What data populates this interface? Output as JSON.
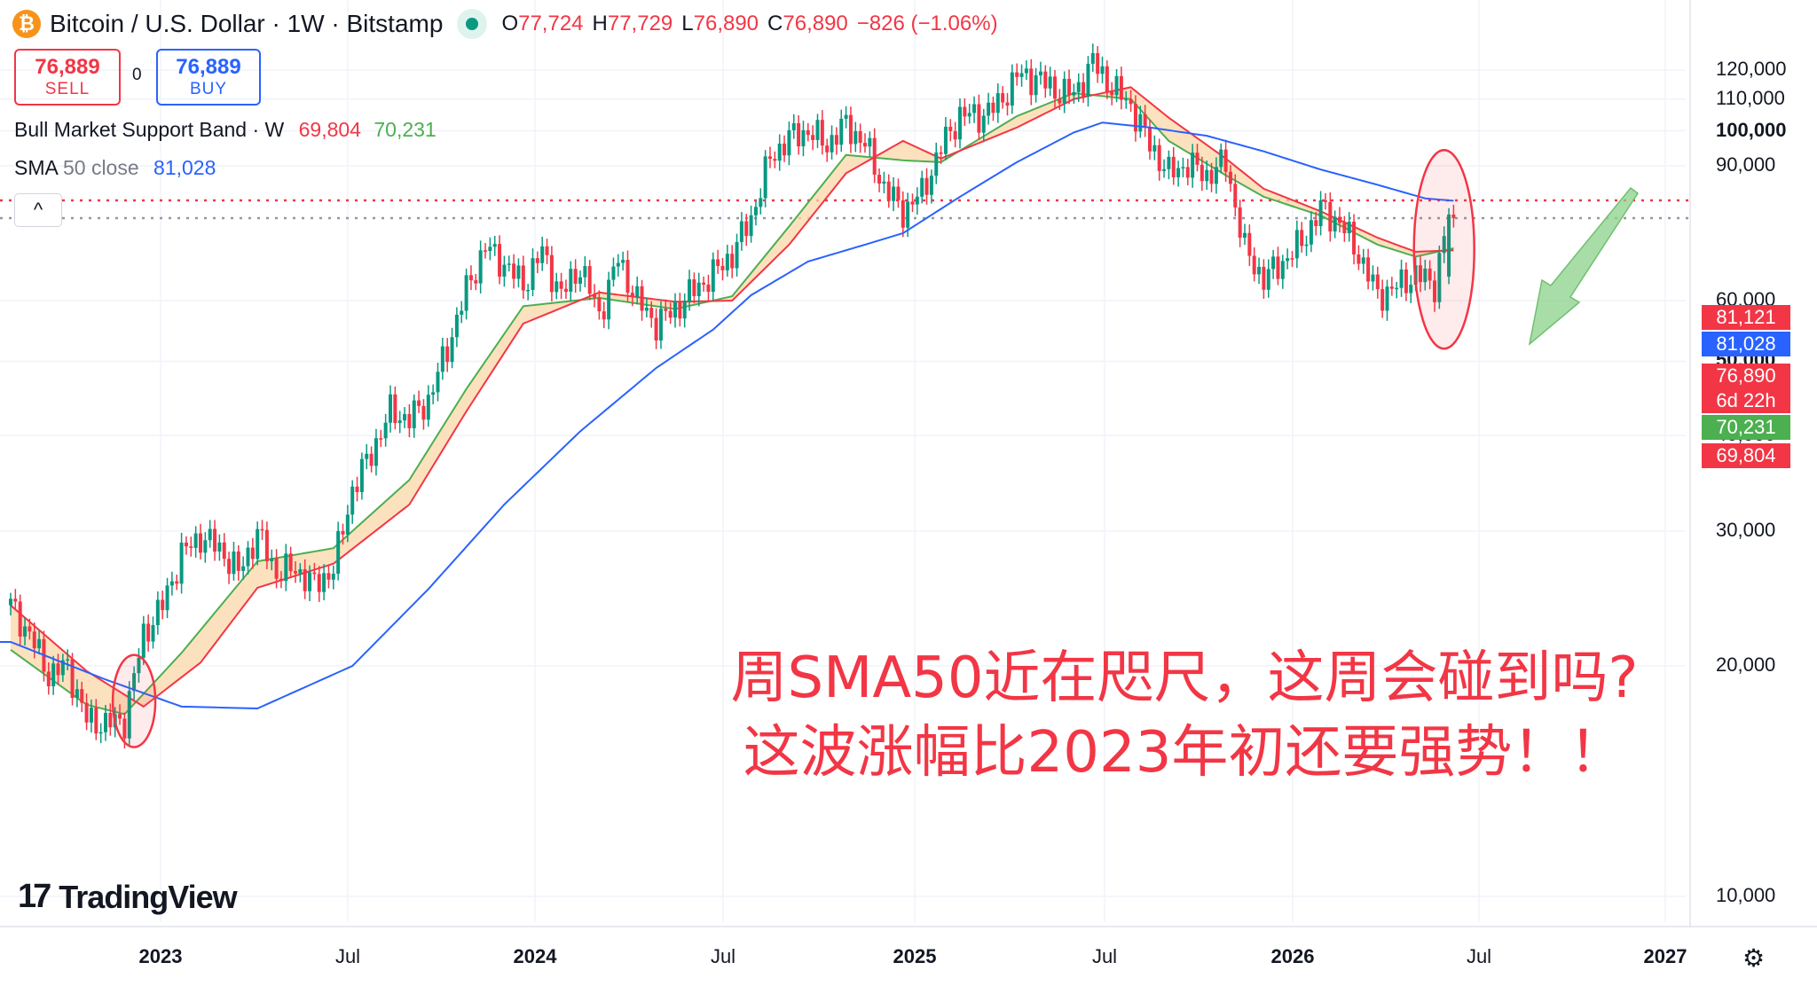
{
  "header": {
    "coin_glyph": "₿",
    "symbol": "Bitcoin / U.S. Dollar · 1W · Bitstamp",
    "open_label": "O",
    "open": "77,724",
    "high_label": "H",
    "high": "77,729",
    "low_label": "L",
    "low": "76,890",
    "close_label": "C",
    "close": "76,890",
    "change": "−826 (−1.06%)"
  },
  "trade": {
    "sell_price": "76,889",
    "sell_label": "SELL",
    "spread": "0",
    "buy_price": "76,889",
    "buy_label": "BUY"
  },
  "indicators": {
    "band_name": "Bull Market Support Band · W",
    "band_low": "69,804",
    "band_high": "70,231",
    "sma_name": "SMA",
    "sma_params": "50 close",
    "sma_value": "81,028",
    "collapse_glyph": "^"
  },
  "annotation": {
    "line1": "周SMA50近在咫尺，这周会碰到吗?",
    "line2": "这波涨幅比2023年初还要强势！！"
  },
  "logo": {
    "mark": "17",
    "text": "TradingView"
  },
  "settings_glyph": "⚙",
  "price_labels": [
    {
      "text": "81,121",
      "sub": "",
      "color": "#f23645",
      "value": 81121
    },
    {
      "text": "81,028",
      "sub": "",
      "color": "#2962ff",
      "value": 81028
    },
    {
      "text": "76,890",
      "sub": "6d 22h",
      "color": "#f23645",
      "value": 76890
    },
    {
      "text": "70,231",
      "sub": "",
      "color": "#4caf50",
      "value": 70231
    },
    {
      "text": "69,804",
      "sub": "",
      "color": "#f23645",
      "value": 69804
    }
  ],
  "colors": {
    "up": "#089981",
    "down": "#f23645",
    "sma": "#2962ff",
    "band_fill": "#fbd7a8",
    "band_green": "#4caf50",
    "band_red": "#f23645",
    "arrow": "#8bd18b",
    "grid": "#f0f3fa"
  },
  "chart_data": {
    "type": "candlestick",
    "title": "Bitcoin / U.S. Dollar · 1W · Bitstamp",
    "y_scale": "log",
    "y_ticks": [
      {
        "value": 120000,
        "label": "120,000"
      },
      {
        "value": 110000,
        "label": "110,000"
      },
      {
        "value": 100000,
        "label": "100,000"
      },
      {
        "value": 90000,
        "label": "90,000"
      },
      {
        "value": 60000,
        "label": "60,000"
      },
      {
        "value": 50000,
        "label": "50,000"
      },
      {
        "value": 40000,
        "label": "40,000"
      },
      {
        "value": 30000,
        "label": "30,000"
      },
      {
        "value": 20000,
        "label": "20,000"
      },
      {
        "value": 10000,
        "label": "10,000"
      }
    ],
    "x_ticks": [
      {
        "label": "2023",
        "bold": true
      },
      {
        "label": "Jul",
        "bold": false
      },
      {
        "label": "2024",
        "bold": true
      },
      {
        "label": "Jul",
        "bold": false
      },
      {
        "label": "2025",
        "bold": true
      },
      {
        "label": "Jul",
        "bold": false
      },
      {
        "label": "2026",
        "bold": true
      },
      {
        "label": "Jul",
        "bold": false
      },
      {
        "label": "2027",
        "bold": true
      }
    ],
    "horizontal_lines": [
      {
        "value": 81121,
        "style": "dotted",
        "color": "#f23645"
      },
      {
        "value": 76890,
        "style": "dotted",
        "color": "#9598a1"
      }
    ],
    "price_path": [
      [
        0,
        24000
      ],
      [
        4,
        22000
      ],
      [
        8,
        19500
      ],
      [
        12,
        20000
      ],
      [
        16,
        17000
      ],
      [
        20,
        16800
      ],
      [
        24,
        17000
      ],
      [
        28,
        22000
      ],
      [
        32,
        24000
      ],
      [
        36,
        28000
      ],
      [
        40,
        29500
      ],
      [
        44,
        28500
      ],
      [
        48,
        26500
      ],
      [
        52,
        29800
      ],
      [
        56,
        26500
      ],
      [
        60,
        26800
      ],
      [
        64,
        25500
      ],
      [
        68,
        26800
      ],
      [
        72,
        34000
      ],
      [
        76,
        38000
      ],
      [
        80,
        43000
      ],
      [
        84,
        42000
      ],
      [
        88,
        44500
      ],
      [
        92,
        52000
      ],
      [
        96,
        62000
      ],
      [
        100,
        70500
      ],
      [
        104,
        67000
      ],
      [
        108,
        63000
      ],
      [
        112,
        69500
      ],
      [
        116,
        61000
      ],
      [
        120,
        66500
      ],
      [
        124,
        57500
      ],
      [
        128,
        68000
      ],
      [
        132,
        60000
      ],
      [
        136,
        56000
      ],
      [
        140,
        58500
      ],
      [
        144,
        62000
      ],
      [
        148,
        65000
      ],
      [
        152,
        69000
      ],
      [
        156,
        77000
      ],
      [
        160,
        92000
      ],
      [
        164,
        98000
      ],
      [
        168,
        100000
      ],
      [
        172,
        96000
      ],
      [
        176,
        102000
      ],
      [
        180,
        96000
      ],
      [
        184,
        84500
      ],
      [
        188,
        78500
      ],
      [
        192,
        83000
      ],
      [
        196,
        95000
      ],
      [
        200,
        105000
      ],
      [
        204,
        104500
      ],
      [
        208,
        108000
      ],
      [
        212,
        118000
      ],
      [
        216,
        117500
      ],
      [
        220,
        113000
      ],
      [
        224,
        111500
      ],
      [
        228,
        123000
      ],
      [
        232,
        114000
      ],
      [
        236,
        108000
      ],
      [
        240,
        96000
      ],
      [
        244,
        88000
      ],
      [
        248,
        90500
      ],
      [
        252,
        87500
      ],
      [
        256,
        91000
      ],
      [
        260,
        70000
      ],
      [
        264,
        64000
      ],
      [
        268,
        67500
      ],
      [
        272,
        71500
      ],
      [
        276,
        79000
      ],
      [
        280,
        76000
      ],
      [
        284,
        69000
      ],
      [
        288,
        61000
      ],
      [
        292,
        62500
      ],
      [
        296,
        65000
      ],
      [
        300,
        63000
      ],
      [
        303,
        78000
      ],
      [
        304,
        76890
      ]
    ],
    "series": [
      {
        "name": "SMA 50 close",
        "color": "#2962ff",
        "path": [
          [
            0,
            21500
          ],
          [
            20,
            19200
          ],
          [
            36,
            17700
          ],
          [
            52,
            17600
          ],
          [
            72,
            20000
          ],
          [
            88,
            25200
          ],
          [
            104,
            32500
          ],
          [
            120,
            40500
          ],
          [
            136,
            49000
          ],
          [
            148,
            55000
          ],
          [
            156,
            61000
          ],
          [
            168,
            67500
          ],
          [
            180,
            71000
          ],
          [
            188,
            73500
          ],
          [
            200,
            82000
          ],
          [
            212,
            91000
          ],
          [
            224,
            99500
          ],
          [
            230,
            102500
          ],
          [
            240,
            101000
          ],
          [
            252,
            98500
          ],
          [
            264,
            94000
          ],
          [
            276,
            89000
          ],
          [
            288,
            85000
          ],
          [
            298,
            81600
          ],
          [
            304,
            81028
          ]
        ]
      },
      {
        "name": "Bull Market Support Band high",
        "color": "#4caf50",
        "path": [
          [
            0,
            21000
          ],
          [
            16,
            17800
          ],
          [
            24,
            17300
          ],
          [
            36,
            20800
          ],
          [
            52,
            27400
          ],
          [
            68,
            28500
          ],
          [
            84,
            35000
          ],
          [
            96,
            46000
          ],
          [
            108,
            59000
          ],
          [
            124,
            60500
          ],
          [
            140,
            58500
          ],
          [
            152,
            60800
          ],
          [
            164,
            75000
          ],
          [
            176,
            93000
          ],
          [
            188,
            91500
          ],
          [
            196,
            91000
          ],
          [
            212,
            104500
          ],
          [
            224,
            112000
          ],
          [
            236,
            110000
          ],
          [
            244,
            97000
          ],
          [
            256,
            87500
          ],
          [
            264,
            82000
          ],
          [
            276,
            77500
          ],
          [
            288,
            71000
          ],
          [
            296,
            68500
          ],
          [
            304,
            70231
          ]
        ]
      },
      {
        "name": "Bull Market Support Band low",
        "color": "#f23645",
        "path": [
          [
            0,
            24000
          ],
          [
            16,
            19700
          ],
          [
            28,
            17700
          ],
          [
            40,
            20200
          ],
          [
            52,
            25300
          ],
          [
            68,
            27200
          ],
          [
            84,
            32500
          ],
          [
            96,
            43000
          ],
          [
            108,
            56000
          ],
          [
            124,
            61500
          ],
          [
            140,
            59800
          ],
          [
            152,
            60000
          ],
          [
            164,
            71000
          ],
          [
            176,
            88000
          ],
          [
            188,
            97000
          ],
          [
            196,
            92000
          ],
          [
            212,
            101000
          ],
          [
            224,
            110000
          ],
          [
            236,
            114000
          ],
          [
            244,
            104000
          ],
          [
            256,
            92000
          ],
          [
            264,
            84000
          ],
          [
            276,
            78500
          ],
          [
            288,
            72500
          ],
          [
            296,
            69500
          ],
          [
            304,
            69804
          ]
        ]
      }
    ]
  }
}
